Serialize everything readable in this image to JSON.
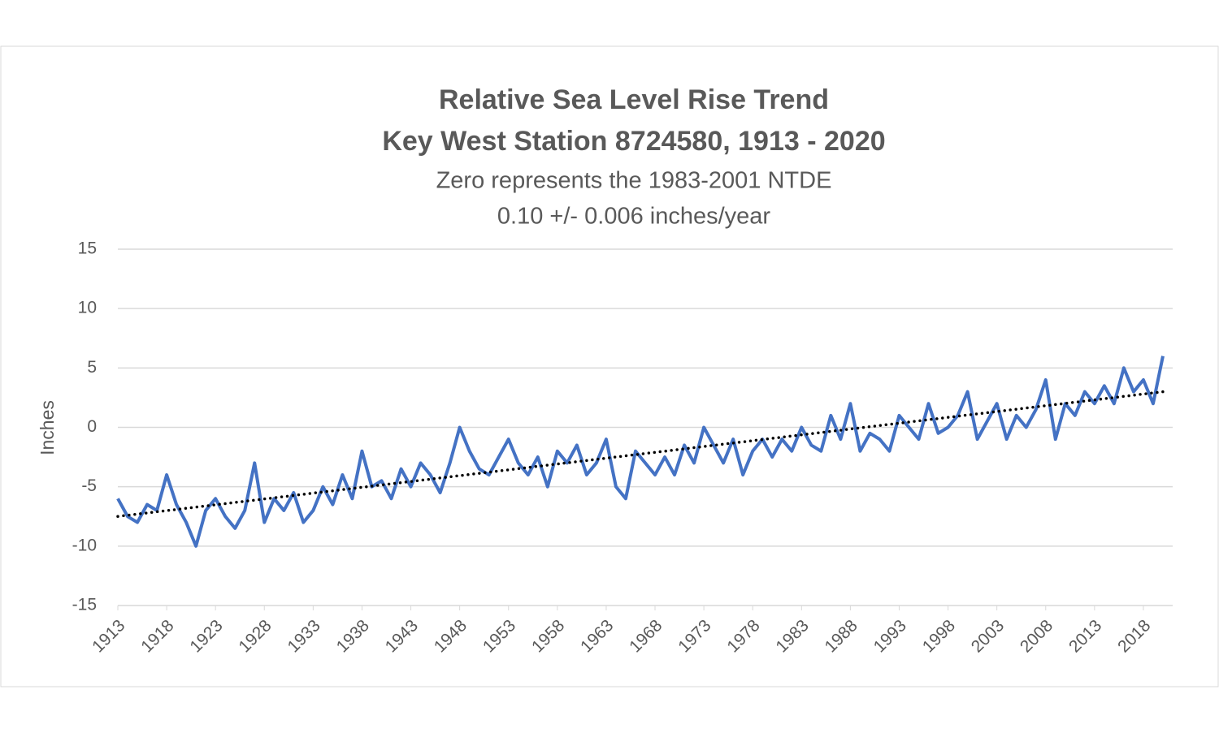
{
  "chart_data": {
    "type": "line",
    "title": [
      "Relative Sea Level Rise Trend",
      "Key West Station 8724580, 1913 - 2020"
    ],
    "subtitle": [
      "Zero represents the 1983-2001 NTDE",
      "0.10 +/- 0.006 inches/year"
    ],
    "y_label": "Inches",
    "xlim": [
      1913,
      2021
    ],
    "ylim": [
      -15,
      15
    ],
    "xticks": [
      1913,
      1918,
      1923,
      1928,
      1933,
      1938,
      1943,
      1948,
      1953,
      1958,
      1963,
      1968,
      1973,
      1978,
      1983,
      1988,
      1993,
      1998,
      2003,
      2008,
      2013,
      2018
    ],
    "yticks": [
      -15,
      -10,
      -5,
      0,
      5,
      10,
      15
    ],
    "grid": true,
    "series": [
      {
        "color": "#4472c4",
        "style": "solid",
        "x": [
          1913,
          1914,
          1915,
          1916,
          1917,
          1918,
          1919,
          1920,
          1921,
          1922,
          1923,
          1924,
          1925,
          1926,
          1927,
          1928,
          1929,
          1930,
          1931,
          1932,
          1933,
          1934,
          1935,
          1936,
          1937,
          1938,
          1939,
          1940,
          1941,
          1942,
          1943,
          1944,
          1945,
          1946,
          1947,
          1948,
          1949,
          1950,
          1951,
          1952,
          1953,
          1954,
          1955,
          1956,
          1957,
          1958,
          1959,
          1960,
          1961,
          1962,
          1963,
          1964,
          1965,
          1966,
          1967,
          1968,
          1969,
          1970,
          1971,
          1972,
          1973,
          1974,
          1975,
          1976,
          1977,
          1978,
          1979,
          1980,
          1981,
          1982,
          1983,
          1984,
          1985,
          1986,
          1987,
          1988,
          1989,
          1990,
          1991,
          1992,
          1993,
          1994,
          1995,
          1996,
          1997,
          1998,
          1999,
          2000,
          2001,
          2002,
          2003,
          2004,
          2005,
          2006,
          2007,
          2008,
          2009,
          2010,
          2011,
          2012,
          2013,
          2014,
          2015,
          2016,
          2017,
          2018,
          2019,
          2020
        ],
        "values": [
          -6,
          -7.5,
          -8,
          -6.5,
          -7,
          -4,
          -6.5,
          -8,
          -10,
          -7,
          -6,
          -7.5,
          -8.5,
          -7,
          -3,
          -8,
          -6,
          -7,
          -5.5,
          -8,
          -7,
          -5,
          -6.5,
          -4,
          -6,
          -2,
          -5,
          -4.5,
          -6,
          -3.5,
          -5,
          -3,
          -4,
          -5.5,
          -3,
          0,
          -2,
          -3.5,
          -4,
          -2.5,
          -1,
          -3,
          -4,
          -2.5,
          -5,
          -2,
          -3,
          -1.5,
          -4,
          -3,
          -1,
          -5,
          -6,
          -2,
          -3,
          -4,
          -2.5,
          -4,
          -1.5,
          -3,
          0,
          -1.5,
          -3,
          -1,
          -4,
          -2,
          -1,
          -2.5,
          -1,
          -2,
          0,
          -1.5,
          -2,
          1,
          -1,
          2,
          -2,
          -0.5,
          -1,
          -2,
          1,
          0,
          -1,
          2,
          -0.5,
          0,
          1,
          3,
          -1,
          0.5,
          2,
          -1,
          1,
          0,
          1.5,
          4,
          -1,
          2,
          1,
          3,
          2,
          3.5,
          2,
          5,
          3,
          4,
          2,
          6
        ]
      },
      {
        "color": "#000000",
        "style": "dotted",
        "x": [
          1913,
          2020
        ],
        "values": [
          -7.5,
          3
        ]
      }
    ]
  }
}
